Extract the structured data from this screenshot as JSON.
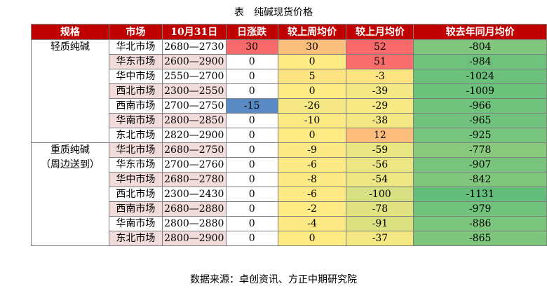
{
  "caption": "表　纯碱现货价格",
  "headers": [
    "规格",
    "市场",
    "10月31日",
    "日涨跌",
    "较上周均价",
    "较上月均价",
    "较去年同月均价"
  ],
  "groups": [
    {
      "lines": [
        "轻质纯碱"
      ],
      "rows": [
        {
          "market": "华北市场",
          "range": "2680—2730",
          "daily": "30",
          "week": "30",
          "month": "52",
          "year": "-804",
          "highlight": false,
          "colors": {
            "daily": "#f8696b",
            "week": "#fcbf7b",
            "month": "#f8696b",
            "year": "#80c77d"
          }
        },
        {
          "market": "华东市场",
          "range": "2600—2900",
          "daily": "0",
          "week": "0",
          "month": "51",
          "year": "-984",
          "highlight": true,
          "colors": {
            "daily": "#ffffff",
            "week": "#ffeb84",
            "month": "#f86d6c",
            "year": "#6fc27c"
          }
        },
        {
          "market": "华中市场",
          "range": "2550—2700",
          "daily": "0",
          "week": "5",
          "month": "-3",
          "year": "-1024",
          "highlight": false,
          "colors": {
            "daily": "#ffffff",
            "week": "#fee382",
            "month": "#fee382",
            "year": "#6bc07b"
          }
        },
        {
          "market": "西北市场",
          "range": "2300—2550",
          "daily": "0",
          "week": "0",
          "month": "-39",
          "year": "-1009",
          "highlight": true,
          "colors": {
            "daily": "#ffffff",
            "week": "#ffeb84",
            "month": "#f3e884",
            "year": "#6cc17b"
          }
        },
        {
          "market": "西南市场",
          "range": "2700—2750",
          "daily": "-15",
          "week": "-26",
          "month": "-29",
          "year": "-966",
          "highlight": false,
          "colors": {
            "daily": "#5a8ac6",
            "week": "#f5e884",
            "month": "#f7e984",
            "year": "#71c27c"
          }
        },
        {
          "market": "华南市场",
          "range": "2800—2850",
          "daily": "0",
          "week": "-10",
          "month": "-38",
          "year": "-965",
          "highlight": true,
          "colors": {
            "daily": "#ffffff",
            "week": "#fbea84",
            "month": "#f3e884",
            "year": "#71c27c"
          }
        },
        {
          "market": "东北市场",
          "range": "2820—2900",
          "daily": "0",
          "week": "0",
          "month": "12",
          "year": "-925",
          "highlight": false,
          "colors": {
            "daily": "#ffffff",
            "week": "#ffeb84",
            "month": "#fdbd7b",
            "year": "#76c47d"
          }
        }
      ]
    },
    {
      "lines": [
        "重质纯碱",
        "（周边送到）"
      ],
      "rows": [
        {
          "market": "华北市场",
          "range": "2680—2750",
          "daily": "0",
          "week": "-9",
          "month": "-59",
          "year": "-778",
          "highlight": true,
          "colors": {
            "daily": "#ffffff",
            "week": "#fbea84",
            "month": "#eae583",
            "year": "#88c97e"
          }
        },
        {
          "market": "华东市场",
          "range": "2700—2760",
          "daily": "0",
          "week": "-6",
          "month": "-56",
          "year": "-907",
          "highlight": false,
          "colors": {
            "daily": "#ffffff",
            "week": "#fdea84",
            "month": "#ece683",
            "year": "#79c47d"
          }
        },
        {
          "market": "华中市场",
          "range": "2680—2780",
          "daily": "0",
          "week": "-8",
          "month": "-54",
          "year": "-842",
          "highlight": true,
          "colors": {
            "daily": "#ffffff",
            "week": "#fcea84",
            "month": "#ede683",
            "year": "#80c77d"
          }
        },
        {
          "market": "西北市场",
          "range": "2300—2430",
          "daily": "0",
          "week": "-6",
          "month": "-100",
          "year": "-1131",
          "highlight": false,
          "colors": {
            "daily": "#ffffff",
            "week": "#fdea84",
            "month": "#d6df81",
            "year": "#63be7b"
          }
        },
        {
          "market": "西南市场",
          "range": "2680—2880",
          "daily": "0",
          "week": "-2",
          "month": "-78",
          "year": "-979",
          "highlight": true,
          "colors": {
            "daily": "#ffffff",
            "week": "#feeb84",
            "month": "#e1e282",
            "year": "#70c27c"
          }
        },
        {
          "market": "华南市场",
          "range": "2800—2880",
          "daily": "0",
          "week": "-4",
          "month": "-91",
          "year": "-886",
          "highlight": false,
          "colors": {
            "daily": "#ffffff",
            "week": "#fdea84",
            "month": "#dbe081",
            "year": "#7bc57d"
          }
        },
        {
          "market": "东北市场",
          "range": "2800—2900",
          "daily": "0",
          "week": "0",
          "month": "-37",
          "year": "-865",
          "highlight": true,
          "colors": {
            "daily": "#ffffff",
            "week": "#ffeb84",
            "month": "#f4e884",
            "year": "#7ec67d"
          }
        }
      ]
    }
  ],
  "source": "数据来源：卓创资讯、方正中期研究院"
}
